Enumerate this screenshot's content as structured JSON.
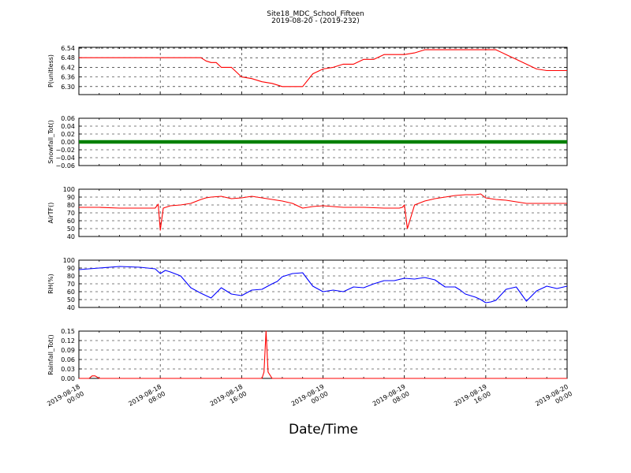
{
  "title": "Site18_MDC_School_Fifteen",
  "subtitle": "2019-08-20 - (2019-232)",
  "xlabel": "Date/Time",
  "x_tick_labels": [
    [
      "2019-08-18",
      "00:00"
    ],
    [
      "2019-08-18",
      "08:00"
    ],
    [
      "2019-08-18",
      "16:00"
    ],
    [
      "2019-08-19",
      "00:00"
    ],
    [
      "2019-08-19",
      "08:00"
    ],
    [
      "2019-08-19",
      "16:00"
    ],
    [
      "2019-08-20",
      "00:00"
    ]
  ],
  "colors": {
    "red": "#ff0000",
    "green": "#008000",
    "blue": "#0000ff",
    "axis": "#000000"
  },
  "chart_data": [
    {
      "type": "line",
      "ylabel": "P(unitless)",
      "xlim": [
        "2019-08-18 00:00",
        "2019-08-20 00:00"
      ],
      "ylim": [
        6.25,
        6.545
      ],
      "yticks": [
        6.3,
        6.36,
        6.42,
        6.48,
        6.54
      ],
      "ytick_labels": [
        "6.30",
        "6.36",
        "6.42",
        "6.48",
        "6.54"
      ],
      "grid": true,
      "series": [
        {
          "color": "red",
          "x_hours": [
            0,
            3,
            6,
            9,
            11,
            12,
            12.5,
            13,
            13.5,
            14,
            15,
            16,
            17,
            18,
            19,
            20,
            21,
            22,
            23,
            24,
            25,
            26,
            27,
            28,
            29,
            30,
            31,
            32,
            33,
            34,
            35,
            36,
            37,
            38,
            39,
            40,
            41,
            42,
            43,
            44,
            45,
            46,
            47,
            48
          ],
          "values": [
            6.48,
            6.48,
            6.48,
            6.48,
            6.48,
            6.48,
            6.46,
            6.45,
            6.45,
            6.42,
            6.42,
            6.36,
            6.35,
            6.33,
            6.32,
            6.3,
            6.3,
            6.3,
            6.38,
            6.41,
            6.42,
            6.44,
            6.44,
            6.47,
            6.47,
            6.5,
            6.5,
            6.5,
            6.51,
            6.53,
            6.53,
            6.53,
            6.53,
            6.53,
            6.53,
            6.53,
            6.53,
            6.5,
            6.47,
            6.44,
            6.41,
            6.4,
            6.4,
            6.4
          ]
        }
      ]
    },
    {
      "type": "line",
      "ylabel": "Snowfall_Tot()",
      "xlim": [
        "2019-08-18 00:00",
        "2019-08-20 00:00"
      ],
      "ylim": [
        -0.06,
        0.06
      ],
      "yticks": [
        -0.06,
        -0.04,
        -0.02,
        0.0,
        0.02,
        0.04,
        0.06
      ],
      "ytick_labels": [
        "−0.06",
        "−0.04",
        "−0.02",
        "0.00",
        "0.02",
        "0.04",
        "0.06"
      ],
      "grid": true,
      "series": [
        {
          "color": "green",
          "x_hours": [
            0,
            48
          ],
          "values": [
            0,
            0
          ]
        }
      ]
    },
    {
      "type": "line",
      "ylabel": "AirTF()",
      "xlim": [
        "2019-08-18 00:00",
        "2019-08-20 00:00"
      ],
      "ylim": [
        40,
        100
      ],
      "yticks": [
        40,
        50,
        60,
        70,
        80,
        90,
        100
      ],
      "ytick_labels": [
        "40",
        "50",
        "60",
        "70",
        "80",
        "90",
        "100"
      ],
      "grid": true,
      "series": [
        {
          "color": "red",
          "x_hours": [
            0,
            2,
            4,
            6,
            7.5,
            7.8,
            8,
            8.3,
            9,
            10,
            11,
            12,
            12.5,
            13,
            14,
            15,
            16,
            17,
            18,
            19,
            20,
            21,
            22,
            23,
            24,
            26,
            28,
            30,
            31,
            31.5,
            31.8,
            32,
            32.3,
            33,
            34,
            35,
            36,
            37,
            38,
            39,
            39.5,
            40,
            41,
            42,
            43,
            44,
            46,
            48
          ],
          "values": [
            77,
            77,
            76,
            76,
            76,
            81,
            48,
            76,
            79,
            80,
            82,
            87,
            89,
            90,
            91,
            88,
            89,
            91,
            89,
            87,
            85,
            82,
            76,
            78,
            79,
            77,
            77,
            76,
            76,
            76,
            77,
            80,
            50,
            80,
            85,
            88,
            90,
            92,
            93,
            93,
            94,
            89,
            87,
            86,
            84,
            82,
            82,
            82
          ]
        }
      ]
    },
    {
      "type": "line",
      "ylabel": "RH(%)",
      "xlim": [
        "2019-08-18 00:00",
        "2019-08-20 00:00"
      ],
      "ylim": [
        40,
        100
      ],
      "yticks": [
        40,
        50,
        60,
        70,
        80,
        90,
        100
      ],
      "ytick_labels": [
        "40",
        "50",
        "60",
        "70",
        "80",
        "90",
        "100"
      ],
      "grid": true,
      "series": [
        {
          "color": "blue",
          "x_hours": [
            0,
            2,
            4,
            6,
            7.5,
            8,
            8.5,
            9,
            10,
            11,
            12,
            13,
            14,
            15,
            16,
            17,
            18,
            19,
            19.5,
            20,
            21,
            22,
            23,
            24,
            25,
            26,
            27,
            28,
            29,
            30,
            31,
            32,
            33,
            34,
            35,
            36,
            37,
            37.5,
            38,
            39,
            39.5,
            40,
            40.5,
            41,
            42,
            43,
            44,
            45,
            46,
            47,
            48
          ],
          "values": [
            88,
            90,
            92,
            91,
            89,
            83,
            87,
            85,
            80,
            65,
            58,
            52,
            65,
            57,
            55,
            62,
            63,
            70,
            73,
            79,
            83,
            84,
            67,
            60,
            62,
            60,
            66,
            65,
            70,
            74,
            74,
            77,
            76,
            78,
            75,
            66,
            66,
            62,
            57,
            53,
            50,
            46,
            47,
            49,
            63,
            66,
            48,
            61,
            67,
            64,
            67
          ]
        }
      ]
    },
    {
      "type": "line",
      "ylabel": "Rainfall_Tot()",
      "xlim": [
        "2019-08-18 00:00",
        "2019-08-20 00:00"
      ],
      "ylim": [
        0,
        0.15
      ],
      "yticks": [
        0.0,
        0.03,
        0.06,
        0.09,
        0.12,
        0.15
      ],
      "ytick_labels": [
        "0.00",
        "0.03",
        "0.06",
        "0.09",
        "0.12",
        "0.15"
      ],
      "grid": true,
      "series": [
        {
          "color": "red",
          "x_hours": [
            0,
            1,
            1.3,
            1.6,
            2,
            18,
            18.2,
            18.4,
            18.6,
            19,
            48
          ],
          "values": [
            0,
            0,
            0.008,
            0.008,
            0,
            0,
            0.02,
            0.15,
            0.02,
            0,
            0
          ]
        }
      ]
    }
  ]
}
